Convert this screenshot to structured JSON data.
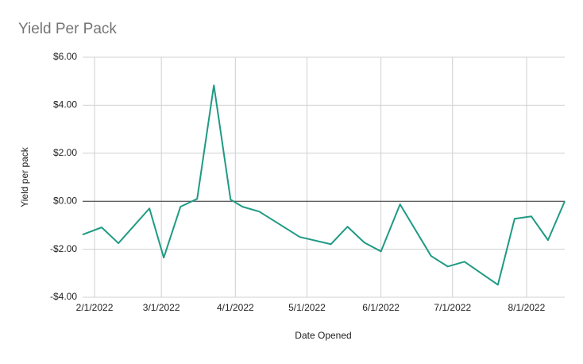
{
  "chart_data": {
    "type": "line",
    "title": "Yield Per Pack",
    "x_label": "Date Opened",
    "y_label": "Yield per pack",
    "x": [
      "2022-01-27",
      "2022-02-04",
      "2022-02-11",
      "2022-02-24",
      "2022-03-02",
      "2022-03-09",
      "2022-03-16",
      "2022-03-23",
      "2022-03-30",
      "2022-04-04",
      "2022-04-11",
      "2022-04-28",
      "2022-05-11",
      "2022-05-18",
      "2022-05-25",
      "2022-06-01",
      "2022-06-09",
      "2022-06-22",
      "2022-06-29",
      "2022-07-06",
      "2022-07-20",
      "2022-07-27",
      "2022-08-03",
      "2022-08-10",
      "2022-08-17"
    ],
    "series": [
      {
        "name": "Yield per pack",
        "color": "#1f9a84",
        "values": [
          -1.39,
          -1.09,
          -1.75,
          -0.3,
          -2.35,
          -0.23,
          0.1,
          4.83,
          0.07,
          -0.23,
          -0.43,
          -1.49,
          -1.79,
          -1.06,
          -1.72,
          -2.09,
          -0.13,
          -2.28,
          -2.72,
          -2.52,
          -3.48,
          -0.73,
          -0.63,
          -1.62,
          0.0
        ]
      }
    ],
    "xlim": [
      "2022-01-27",
      "2022-08-17"
    ],
    "xticks": [
      {
        "value": "2022-02-01",
        "label": "2/1/2022"
      },
      {
        "value": "2022-03-01",
        "label": "3/1/2022"
      },
      {
        "value": "2022-04-01",
        "label": "4/1/2022"
      },
      {
        "value": "2022-05-01",
        "label": "5/1/2022"
      },
      {
        "value": "2022-06-01",
        "label": "6/1/2022"
      },
      {
        "value": "2022-07-01",
        "label": "7/1/2022"
      },
      {
        "value": "2022-08-01",
        "label": "8/1/2022"
      }
    ],
    "ylim": [
      -4,
      6
    ],
    "yticks": [
      {
        "value": -4,
        "label": "-$4.00"
      },
      {
        "value": -2,
        "label": "-$2.00"
      },
      {
        "value": 0,
        "label": "$0.00"
      },
      {
        "value": 2,
        "label": "$2.00"
      },
      {
        "value": 4,
        "label": "$4.00"
      },
      {
        "value": 6,
        "label": "$6.00"
      }
    ],
    "grid": true
  }
}
